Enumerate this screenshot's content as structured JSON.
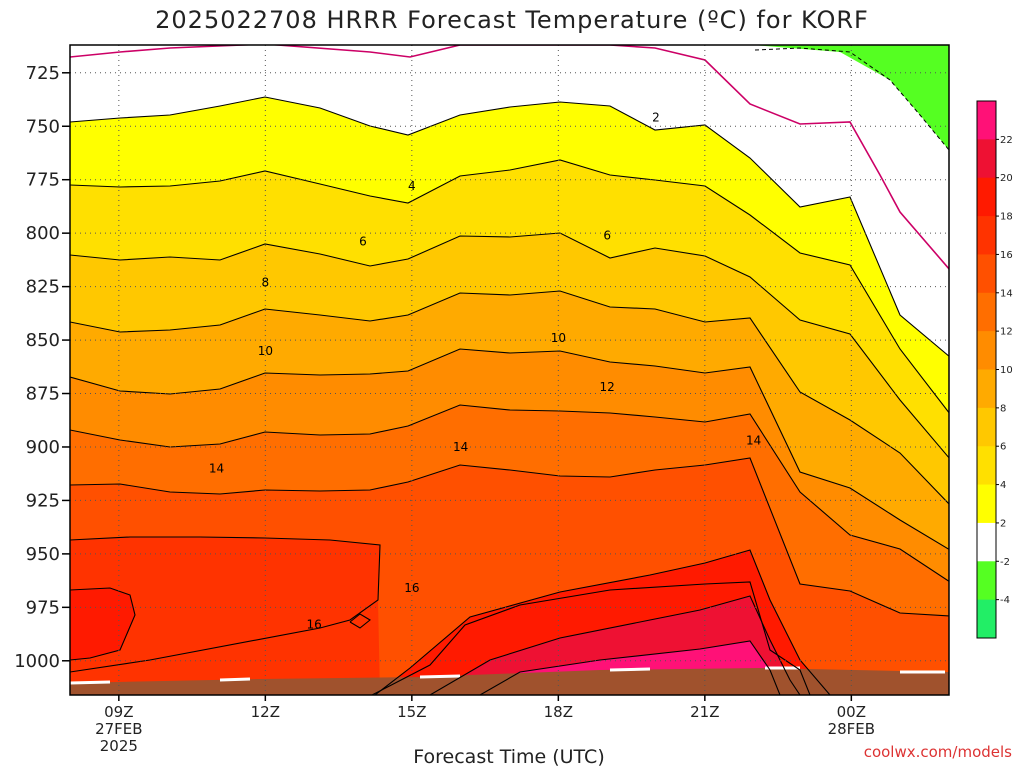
{
  "chart_data": {
    "type": "contour",
    "title": "2025022708 HRRR Forecast Temperature (ºC) for KORF",
    "xlabel": "Forecast Time (UTC)",
    "ylabel": "",
    "credit": "coolwx.com/models",
    "x_ticks": [
      {
        "hour": 9,
        "lines": [
          "09Z",
          "27FEB",
          "2025"
        ]
      },
      {
        "hour": 12,
        "lines": [
          "12Z"
        ]
      },
      {
        "hour": 15,
        "lines": [
          "15Z"
        ]
      },
      {
        "hour": 18,
        "lines": [
          "18Z"
        ]
      },
      {
        "hour": 21,
        "lines": [
          "21Z"
        ]
      },
      {
        "hour": 24,
        "lines": [
          "00Z",
          "28FEB"
        ]
      }
    ],
    "x_range_hours": [
      8,
      26
    ],
    "y_ticks": [
      725,
      750,
      775,
      800,
      825,
      850,
      875,
      900,
      925,
      950,
      975,
      1000
    ],
    "y_range_hpa": [
      712,
      1016
    ],
    "y_scale": "linear, pressure decreasing upward",
    "colorbar_ticks": [
      "22",
      "20",
      "18",
      "16",
      "14",
      "12",
      "10",
      "8",
      "6",
      "4",
      "2",
      "-2",
      "-4"
    ],
    "contour_labels": [
      {
        "text": "2",
        "hour": 20.0,
        "hpa": 746
      },
      {
        "text": "4",
        "hour": 15.0,
        "hpa": 778
      },
      {
        "text": "6",
        "hour": 14.0,
        "hpa": 804
      },
      {
        "text": "6",
        "hour": 19.0,
        "hpa": 801
      },
      {
        "text": "8",
        "hour": 12.0,
        "hpa": 823
      },
      {
        "text": "10",
        "hour": 12.0,
        "hpa": 855
      },
      {
        "text": "10",
        "hour": 18.0,
        "hpa": 849
      },
      {
        "text": "12",
        "hour": 19.0,
        "hpa": 872
      },
      {
        "text": "14",
        "hour": 11.0,
        "hpa": 910
      },
      {
        "text": "14",
        "hour": 16.0,
        "hpa": 900
      },
      {
        "text": "14",
        "hour": 22.0,
        "hpa": 897
      },
      {
        "text": "16",
        "hour": 13.0,
        "hpa": 983
      },
      {
        "text": "16",
        "hour": 15.0,
        "hpa": 966
      }
    ],
    "colors": {
      "below_minus4": "#22ee66",
      "minus4_to_minus2": "#55ff22",
      "minus2_to_2": "#ffffff",
      "2_to_4": "#ffff00",
      "4_to_6": "#ffe000",
      "6_to_8": "#ffc800",
      "8_to_10": "#ffaa00",
      "10_to_12": "#ff8c00",
      "12_to_14": "#ff6e00",
      "14_to_16": "#ff5000",
      "16_to_18": "#ff3300",
      "18_to_20": "#ff1a00",
      "20_to_22": "#ee1133",
      "above_22": "#ff1177",
      "zero_line": "#cc0066",
      "terrain": "#a0522d"
    }
  }
}
